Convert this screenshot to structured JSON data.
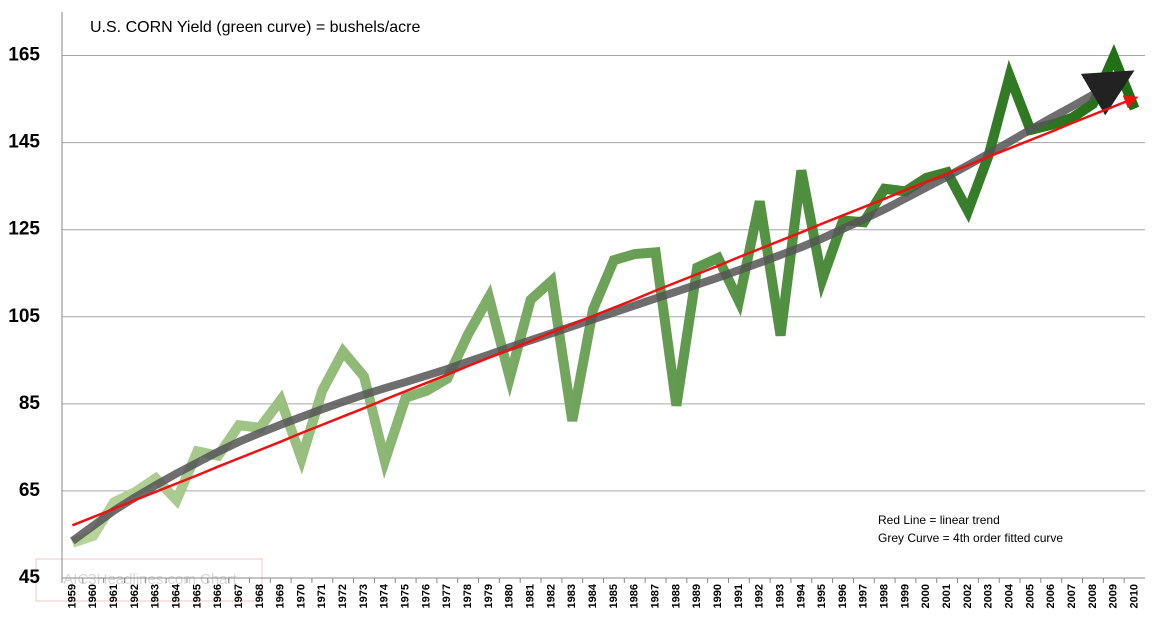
{
  "chart_data": {
    "type": "line",
    "title": "U.S. CORN Yield (green curve) = bushels/acre",
    "annotations": [
      "Red Line = linear trend",
      "Grey Curve = 4th order fitted curve"
    ],
    "watermark": "AIC3Headlines.com Chart",
    "categories": [
      "1959",
      "1960",
      "1961",
      "1962",
      "1963",
      "1964",
      "1965",
      "1966",
      "1967",
      "1968",
      "1969",
      "1970",
      "1971",
      "1972",
      "1973",
      "1974",
      "1975",
      "1976",
      "1977",
      "1978",
      "1979",
      "1980",
      "1981",
      "1982",
      "1983",
      "1984",
      "1985",
      "1986",
      "1987",
      "1988",
      "1989",
      "1990",
      "1991",
      "1992",
      "1993",
      "1994",
      "1995",
      "1996",
      "1997",
      "1998",
      "1999",
      "2000",
      "2001",
      "2002",
      "2003",
      "2004",
      "2005",
      "2006",
      "2007",
      "2008",
      "2009",
      "2010"
    ],
    "series": [
      {
        "gradient": [
          "#b9d59c",
          "#1f6e14"
        ],
        "width": 10,
        "values": [
          53.1,
          54.7,
          62.4,
          64.7,
          67.9,
          62.9,
          74.1,
          73.1,
          80.1,
          79.5,
          85.9,
          72.4,
          88.1,
          97.0,
          91.3,
          71.9,
          86.4,
          88.0,
          90.8,
          101.0,
          109.5,
          91.0,
          108.9,
          113.2,
          81.1,
          106.7,
          118.0,
          119.4,
          119.8,
          84.6,
          116.3,
          118.5,
          108.6,
          131.5,
          100.7,
          138.6,
          113.5,
          127.1,
          126.7,
          134.4,
          133.8,
          136.9,
          138.2,
          129.3,
          142.2,
          160.3,
          147.9,
          149.1,
          150.7,
          153.9,
          164.7,
          152.8
        ]
      },
      {
        "color": "#555555",
        "width": 8,
        "arrow": true,
        "values": [
          53.5,
          57,
          60.5,
          63.5,
          66.3,
          69,
          71.5,
          74,
          76.3,
          78.3,
          80.2,
          82,
          83.8,
          85.5,
          87.1,
          88.6,
          90,
          91.5,
          93,
          94.7,
          96.3,
          98,
          99.6,
          101.2,
          102.8,
          104.4,
          106,
          107.6,
          109.2,
          110.8,
          112.4,
          114,
          115.7,
          117.4,
          119.2,
          121,
          123,
          125.2,
          127.4,
          129.7,
          132.2,
          134.7,
          137.2,
          139.8,
          142.5,
          145.2,
          148,
          150.7,
          153.3,
          156,
          158.8,
          null
        ]
      },
      {
        "color": "#ee1111",
        "width": 2.5,
        "arrow": true,
        "values": [
          57.1,
          59.0,
          60.9,
          62.9,
          64.8,
          66.7,
          68.6,
          70.6,
          72.5,
          74.4,
          76.3,
          78.3,
          80.2,
          82.1,
          84.0,
          86.0,
          87.9,
          89.8,
          91.7,
          93.7,
          95.6,
          97.5,
          99.4,
          101.4,
          103.3,
          105.2,
          107.1,
          109.0,
          111.0,
          112.9,
          114.8,
          116.7,
          118.7,
          120.6,
          122.5,
          124.4,
          126.4,
          128.3,
          130.2,
          132.1,
          134.1,
          136.0,
          137.9,
          139.8,
          141.8,
          143.7,
          145.6,
          147.5,
          149.5,
          151.4,
          153.3,
          155.2
        ]
      }
    ],
    "ylim": [
      45,
      175
    ],
    "yticks": [
      45,
      65,
      85,
      105,
      125,
      145,
      165
    ],
    "grid": true
  }
}
